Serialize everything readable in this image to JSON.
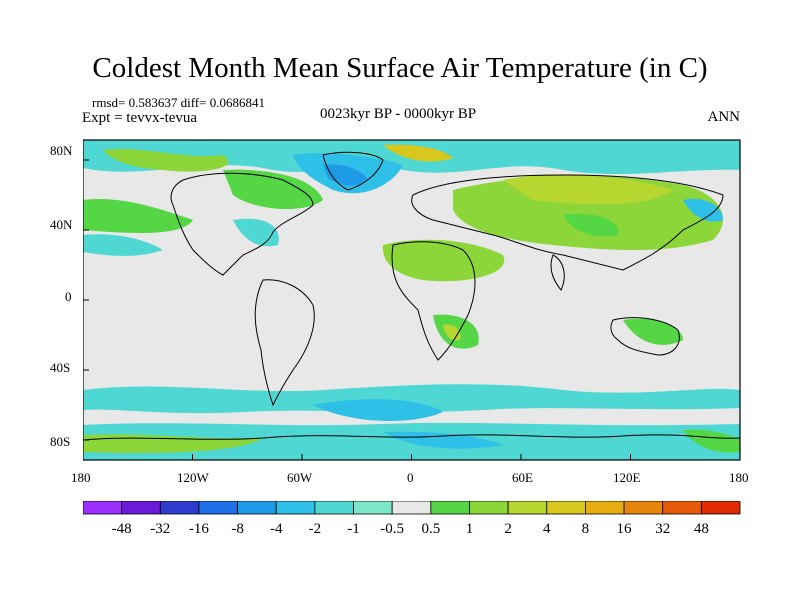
{
  "title": "Coldest Month Mean Surface Air Temperature (in C)",
  "stats": "rmsd= 0.583637  diff= 0.0686841",
  "experiment": "Expt = tevvx-tevua",
  "period": "0023kyr BP - 0000kyr BP",
  "season": "ANN",
  "map": {
    "ocean_color": "#e8e8e8",
    "lat_ticks": [
      "80N",
      "40N",
      "0",
      "40S",
      "80S"
    ],
    "lon_ticks": [
      "180",
      "120W",
      "60W",
      "0",
      "60E",
      "120E",
      "180"
    ]
  },
  "colorbar": {
    "colors": [
      "#9b30ff",
      "#6a1bd9",
      "#2d3ccc",
      "#1f6fe8",
      "#1e9be6",
      "#2fc0e8",
      "#4fd7d3",
      "#7ee6c8",
      "#e8e8e8",
      "#55d644",
      "#8cd63a",
      "#b8d630",
      "#d8c81e",
      "#e6ad10",
      "#e6860c",
      "#e65a0a",
      "#e02a06"
    ],
    "labels": [
      "-48",
      "-32",
      "-16",
      "-8",
      "-4",
      "-2",
      "-1",
      "-0.5",
      "0.5",
      "1",
      "2",
      "4",
      "8",
      "16",
      "32",
      "48"
    ]
  }
}
